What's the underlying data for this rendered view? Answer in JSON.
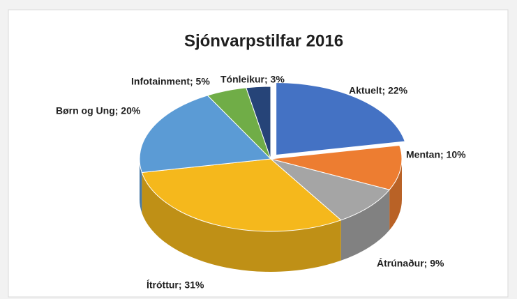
{
  "chart_data": {
    "type": "pie",
    "title": "Sjónvarpstilfar 2016",
    "labels": [
      "Aktuelt; 22%",
      "Mentan; 10%",
      "Átrúnaður; 9%",
      "Ítróttur; 31%",
      "Børn og Ung; 20%",
      "Infotainment; 5%",
      "Tónleikur; 3%"
    ],
    "values": [
      22,
      10,
      9,
      31,
      20,
      5,
      3
    ],
    "colors": [
      "#4472c4",
      "#ed7d31",
      "#a5a5a5",
      "#f5b81c",
      "#5b9bd5",
      "#70ad47",
      "#264478"
    ]
  }
}
